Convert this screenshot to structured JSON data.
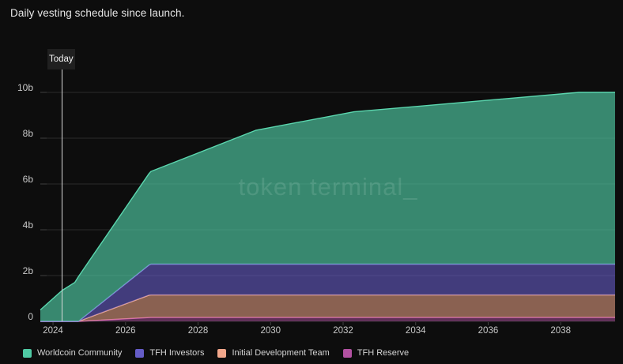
{
  "title": "Daily vesting schedule since launch.",
  "today_label": "Today",
  "watermark": "token terminal_",
  "colors": {
    "background": "#0d0d0d",
    "title_text": "#e6e6e6",
    "axis_text": "#c9c9c9",
    "grid": "#2a2a2a",
    "axis_tick": "#404040",
    "today_line": "#d9d9d9",
    "today_box_bg": "#202020",
    "legend_text": "#d4d4d4",
    "watermark_text": "rgba(235,245,240,0.13)"
  },
  "chart_data": {
    "type": "area",
    "stacked": true,
    "title": "Daily vesting schedule since launch.",
    "grid": "horizontal",
    "legend_position": "bottom-left",
    "x_axis": {
      "min": 2023.65,
      "max": 2039.5,
      "ticks": [
        2024,
        2026,
        2028,
        2030,
        2032,
        2034,
        2036,
        2038
      ]
    },
    "y_axis": {
      "min": 0,
      "max": 10,
      "unit": "billions of tokens",
      "ticks": [
        "0",
        "2b",
        "4b",
        "6b",
        "8b",
        "10b"
      ],
      "tick_values": [
        0,
        2,
        4,
        6,
        8,
        10
      ]
    },
    "today_x": 2024.25,
    "series": [
      {
        "name": "TFH Reserve",
        "color": "#b251a1",
        "edge": "#c95fae",
        "fill_opacity": 0.5,
        "x": [
          2024.7,
          2026.7,
          2039.5
        ],
        "values": [
          0,
          0.17,
          0.17
        ]
      },
      {
        "name": "Initial Development Team",
        "color": "#f2a78b",
        "edge": "#f6b098",
        "fill_opacity": 0.55,
        "x": [
          2024.7,
          2026.65,
          2039.5
        ],
        "values": [
          0,
          0.98,
          0.98
        ]
      },
      {
        "name": "TFH Investors",
        "color": "#655cc6",
        "edge": "#8a80e2",
        "fill_opacity": 0.6,
        "x": [
          2024.7,
          2026.7,
          2039.5
        ],
        "values": [
          0,
          1.35,
          1.35
        ]
      },
      {
        "name": "Worldcoin Community",
        "color": "#4fc9a3",
        "edge": "#5bd6ae",
        "fill_opacity": 0.66,
        "x": [
          2023.65,
          2024.25,
          2024.6,
          2024.7,
          2026.7,
          2029.6,
          2032.3,
          2038.5,
          2039.5
        ],
        "values": [
          0.5,
          1.35,
          1.7,
          1.95,
          4.05,
          5.85,
          6.65,
          7.5,
          7.5
        ]
      }
    ]
  }
}
